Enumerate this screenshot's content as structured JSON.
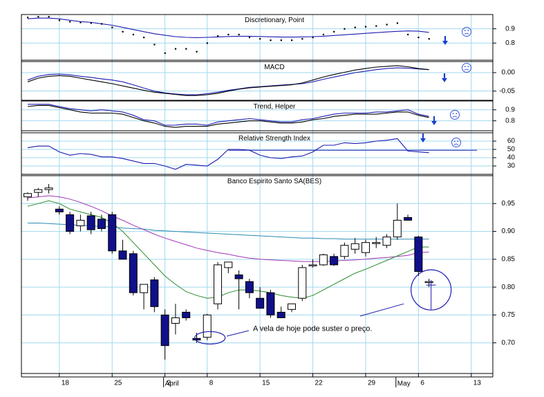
{
  "colors": {
    "grid": "#9fd8ee",
    "frame": "#000000",
    "price_line": "#1a1ab0",
    "ma_long": "#2c8ab3",
    "ma_mid": "#a035b8",
    "ma_short": "#2a8a2a",
    "candle_down": "#10108a",
    "candle_up": "#ffffff",
    "annotation": "#1a1ab0"
  },
  "x_axis": {
    "day_ticks": [
      {
        "label": "18",
        "index": 3
      },
      {
        "label": "25",
        "index": 8
      },
      {
        "label": "2",
        "index": 13
      },
      {
        "label": "8",
        "index": 17
      },
      {
        "label": "15",
        "index": 22
      },
      {
        "label": "22",
        "index": 27
      },
      {
        "label": "29",
        "index": 32
      },
      {
        "label": "6",
        "index": 37
      },
      {
        "label": "13",
        "index": 42
      }
    ],
    "months": [
      {
        "label": "April",
        "index": 13
      },
      {
        "label": "May",
        "index": 35
      }
    ]
  },
  "chart_data": [
    {
      "type": "line",
      "title": "Discretionary, Point",
      "y_ticks": [
        0.9,
        0.8
      ],
      "ylim": [
        0.68,
        1.0
      ],
      "series": [
        {
          "values": [
            0.97,
            0.975,
            0.975,
            0.97,
            0.96,
            0.95,
            0.945,
            0.935,
            0.925,
            0.91,
            0.895,
            0.88,
            0.865,
            0.855,
            0.845,
            0.84,
            0.838,
            0.84,
            0.843,
            0.846,
            0.848,
            0.848,
            0.846,
            0.844,
            0.842,
            0.842,
            0.843,
            0.845,
            0.848,
            0.853,
            0.858,
            0.863,
            0.868,
            0.873,
            0.878,
            0.882,
            0.885,
            0.883,
            0.875
          ]
        },
        {
          "values": [
            0.98,
            0.985,
            0.985,
            0.96,
            0.95,
            0.945,
            0.94,
            0.935,
            0.91,
            0.88,
            0.86,
            0.84,
            0.79,
            0.73,
            0.76,
            0.76,
            0.74,
            0.8,
            0.85,
            0.86,
            0.86,
            0.84,
            0.83,
            0.82,
            0.82,
            0.82,
            0.83,
            0.84,
            0.86,
            0.88,
            0.9,
            0.91,
            0.915,
            0.92,
            0.93,
            0.94,
            0.86,
            0.84,
            0.83
          ]
        }
      ],
      "sentiment_icon": "frown-icon"
    },
    {
      "type": "line",
      "title": "MACD",
      "y_ticks": [
        0.0,
        -0.05
      ],
      "ylim": [
        -0.075,
        0.03
      ],
      "series": [
        {
          "values": [
            -0.02,
            -0.01,
            -0.005,
            -0.004,
            -0.006,
            -0.01,
            -0.013,
            -0.017,
            -0.02,
            -0.025,
            -0.033,
            -0.042,
            -0.05,
            -0.055,
            -0.058,
            -0.06,
            -0.06,
            -0.057,
            -0.053,
            -0.048,
            -0.044,
            -0.04,
            -0.038,
            -0.036,
            -0.034,
            -0.032,
            -0.03,
            -0.025,
            -0.018,
            -0.012,
            -0.006,
            0.0,
            0.004,
            0.008,
            0.011,
            0.013,
            0.012,
            0.01,
            0.008
          ]
        },
        {
          "values": [
            -0.025,
            -0.015,
            -0.01,
            -0.008,
            -0.01,
            -0.015,
            -0.02,
            -0.025,
            -0.03,
            -0.036,
            -0.042,
            -0.048,
            -0.053,
            -0.056,
            -0.059,
            -0.062,
            -0.062,
            -0.06,
            -0.056,
            -0.05,
            -0.045,
            -0.041,
            -0.039,
            -0.037,
            -0.035,
            -0.033,
            -0.028,
            -0.02,
            -0.012,
            -0.005,
            0.001,
            0.007,
            0.011,
            0.015,
            0.017,
            0.019,
            0.016,
            0.011,
            0.008
          ]
        }
      ],
      "sentiment_icon": "frown-icon"
    },
    {
      "type": "line",
      "title": "Trend, Helper",
      "y_ticks": [
        0.9,
        0.8
      ],
      "ylim": [
        0.71,
        0.98
      ],
      "series": [
        {
          "values": [
            0.95,
            0.95,
            0.95,
            0.93,
            0.91,
            0.9,
            0.89,
            0.9,
            0.89,
            0.88,
            0.85,
            0.81,
            0.8,
            0.76,
            0.76,
            0.77,
            0.77,
            0.76,
            0.79,
            0.8,
            0.81,
            0.82,
            0.81,
            0.8,
            0.79,
            0.79,
            0.81,
            0.82,
            0.84,
            0.86,
            0.87,
            0.87,
            0.87,
            0.88,
            0.88,
            0.89,
            0.9,
            0.86,
            0.84
          ]
        },
        {
          "values": [
            0.93,
            0.94,
            0.94,
            0.92,
            0.9,
            0.88,
            0.87,
            0.87,
            0.87,
            0.86,
            0.83,
            0.8,
            0.78,
            0.75,
            0.74,
            0.75,
            0.75,
            0.75,
            0.77,
            0.78,
            0.79,
            0.8,
            0.8,
            0.79,
            0.78,
            0.78,
            0.79,
            0.81,
            0.82,
            0.84,
            0.85,
            0.86,
            0.86,
            0.86,
            0.87,
            0.88,
            0.88,
            0.85,
            0.83
          ]
        }
      ],
      "sentiment_icon": "frown-icon"
    },
    {
      "type": "line",
      "title": "Relative Strength Index",
      "y_ticks": [
        60,
        50,
        40,
        30
      ],
      "ylim": [
        20,
        70
      ],
      "reference_level": 49,
      "series": [
        {
          "values": [
            52,
            54,
            54,
            47,
            43,
            45,
            44,
            41,
            41,
            39,
            36,
            33,
            33,
            30,
            26,
            32,
            31,
            30,
            38,
            50,
            50,
            49,
            43,
            40,
            39,
            41,
            42,
            47,
            55,
            55,
            58,
            57,
            58,
            60,
            61,
            63,
            48,
            47,
            46
          ]
        }
      ],
      "sentiment_icon": "frown-icon"
    },
    {
      "type": "candlestick",
      "title": "Banco Espirito Santo SA(BES)",
      "y_ticks": [
        0.95,
        0.9,
        0.85,
        0.8,
        0.75,
        0.7
      ],
      "ylim": [
        0.645,
        1.0
      ],
      "candles": [
        {
          "o": 0.962,
          "h": 0.97,
          "l": 0.955,
          "c": 0.968
        },
        {
          "o": 0.97,
          "h": 0.978,
          "l": 0.962,
          "c": 0.975
        },
        {
          "o": 0.975,
          "h": 0.985,
          "l": 0.968,
          "c": 0.978
        },
        {
          "o": 0.94,
          "h": 0.945,
          "l": 0.93,
          "c": 0.935
        },
        {
          "o": 0.93,
          "h": 0.935,
          "l": 0.895,
          "c": 0.9
        },
        {
          "o": 0.91,
          "h": 0.93,
          "l": 0.9,
          "c": 0.92
        },
        {
          "o": 0.928,
          "h": 0.935,
          "l": 0.895,
          "c": 0.903
        },
        {
          "o": 0.922,
          "h": 0.93,
          "l": 0.9,
          "c": 0.905
        },
        {
          "o": 0.93,
          "h": 0.935,
          "l": 0.86,
          "c": 0.865
        },
        {
          "o": 0.865,
          "h": 0.885,
          "l": 0.85,
          "c": 0.85
        },
        {
          "o": 0.86,
          "h": 0.865,
          "l": 0.785,
          "c": 0.79
        },
        {
          "o": 0.79,
          "h": 0.805,
          "l": 0.76,
          "c": 0.805
        },
        {
          "o": 0.813,
          "h": 0.818,
          "l": 0.755,
          "c": 0.765
        },
        {
          "o": 0.75,
          "h": 0.76,
          "l": 0.67,
          "c": 0.695
        },
        {
          "o": 0.735,
          "h": 0.77,
          "l": 0.715,
          "c": 0.745
        },
        {
          "o": 0.755,
          "h": 0.76,
          "l": 0.74,
          "c": 0.745
        },
        {
          "o": 0.708,
          "h": 0.718,
          "l": 0.7,
          "c": 0.705
        },
        {
          "o": 0.71,
          "h": 0.752,
          "l": 0.705,
          "c": 0.75
        },
        {
          "o": 0.77,
          "h": 0.845,
          "l": 0.76,
          "c": 0.84
        },
        {
          "o": 0.835,
          "h": 0.845,
          "l": 0.825,
          "c": 0.845
        },
        {
          "o": 0.822,
          "h": 0.83,
          "l": 0.76,
          "c": 0.815
        },
        {
          "o": 0.81,
          "h": 0.815,
          "l": 0.78,
          "c": 0.79
        },
        {
          "o": 0.78,
          "h": 0.8,
          "l": 0.765,
          "c": 0.762
        },
        {
          "o": 0.79,
          "h": 0.795,
          "l": 0.745,
          "c": 0.75
        },
        {
          "o": 0.755,
          "h": 0.765,
          "l": 0.745,
          "c": 0.745
        },
        {
          "o": 0.76,
          "h": 0.77,
          "l": 0.755,
          "c": 0.77
        },
        {
          "o": 0.78,
          "h": 0.84,
          "l": 0.775,
          "c": 0.835
        },
        {
          "o": 0.84,
          "h": 0.85,
          "l": 0.835,
          "c": 0.84
        },
        {
          "o": 0.84,
          "h": 0.86,
          "l": 0.838,
          "c": 0.858
        },
        {
          "o": 0.855,
          "h": 0.86,
          "l": 0.838,
          "c": 0.84
        },
        {
          "o": 0.855,
          "h": 0.88,
          "l": 0.85,
          "c": 0.875
        },
        {
          "o": 0.868,
          "h": 0.888,
          "l": 0.86,
          "c": 0.878
        },
        {
          "o": 0.862,
          "h": 0.885,
          "l": 0.855,
          "c": 0.88
        },
        {
          "o": 0.88,
          "h": 0.89,
          "l": 0.87,
          "c": 0.88
        },
        {
          "o": 0.875,
          "h": 0.895,
          "l": 0.87,
          "c": 0.89
        },
        {
          "o": 0.89,
          "h": 0.95,
          "l": 0.885,
          "c": 0.92
        },
        {
          "o": 0.925,
          "h": 0.93,
          "l": 0.92,
          "c": 0.92
        },
        {
          "o": 0.89,
          "h": 0.892,
          "l": 0.82,
          "c": 0.828
        },
        {
          "o": 0.81,
          "h": 0.815,
          "l": 0.8,
          "c": 0.81
        }
      ],
      "ma_short": [
        0.945,
        0.95,
        0.955,
        0.95,
        0.94,
        0.935,
        0.93,
        0.925,
        0.915,
        0.9,
        0.88,
        0.86,
        0.84,
        0.82,
        0.805,
        0.792,
        0.785,
        0.78,
        0.782,
        0.79,
        0.795,
        0.795,
        0.793,
        0.79,
        0.785,
        0.782,
        0.78,
        0.785,
        0.795,
        0.805,
        0.815,
        0.825,
        0.832,
        0.84,
        0.848,
        0.856,
        0.864,
        0.872,
        0.872
      ],
      "ma_mid": [
        0.96,
        0.962,
        0.964,
        0.962,
        0.958,
        0.952,
        0.945,
        0.937,
        0.928,
        0.92,
        0.911,
        0.903,
        0.895,
        0.888,
        0.882,
        0.876,
        0.87,
        0.866,
        0.862,
        0.859,
        0.855,
        0.852,
        0.85,
        0.849,
        0.848,
        0.847,
        0.846,
        0.846,
        0.846,
        0.847,
        0.848,
        0.849,
        0.85,
        0.852,
        0.853,
        0.855,
        0.857,
        0.862,
        0.863
      ],
      "ma_long": [
        0.915,
        0.915,
        0.914,
        0.913,
        0.912,
        0.911,
        0.91,
        0.909,
        0.908,
        0.906,
        0.905,
        0.904,
        0.902,
        0.901,
        0.9,
        0.899,
        0.898,
        0.897,
        0.896,
        0.895,
        0.894,
        0.893,
        0.892,
        0.891,
        0.89,
        0.889,
        0.888,
        0.888,
        0.887,
        0.887,
        0.886,
        0.886,
        0.886,
        0.886,
        0.886,
        0.886,
        0.886,
        0.886,
        0.886
      ],
      "annotation": "A vela de hoje pode suster o preço."
    }
  ]
}
